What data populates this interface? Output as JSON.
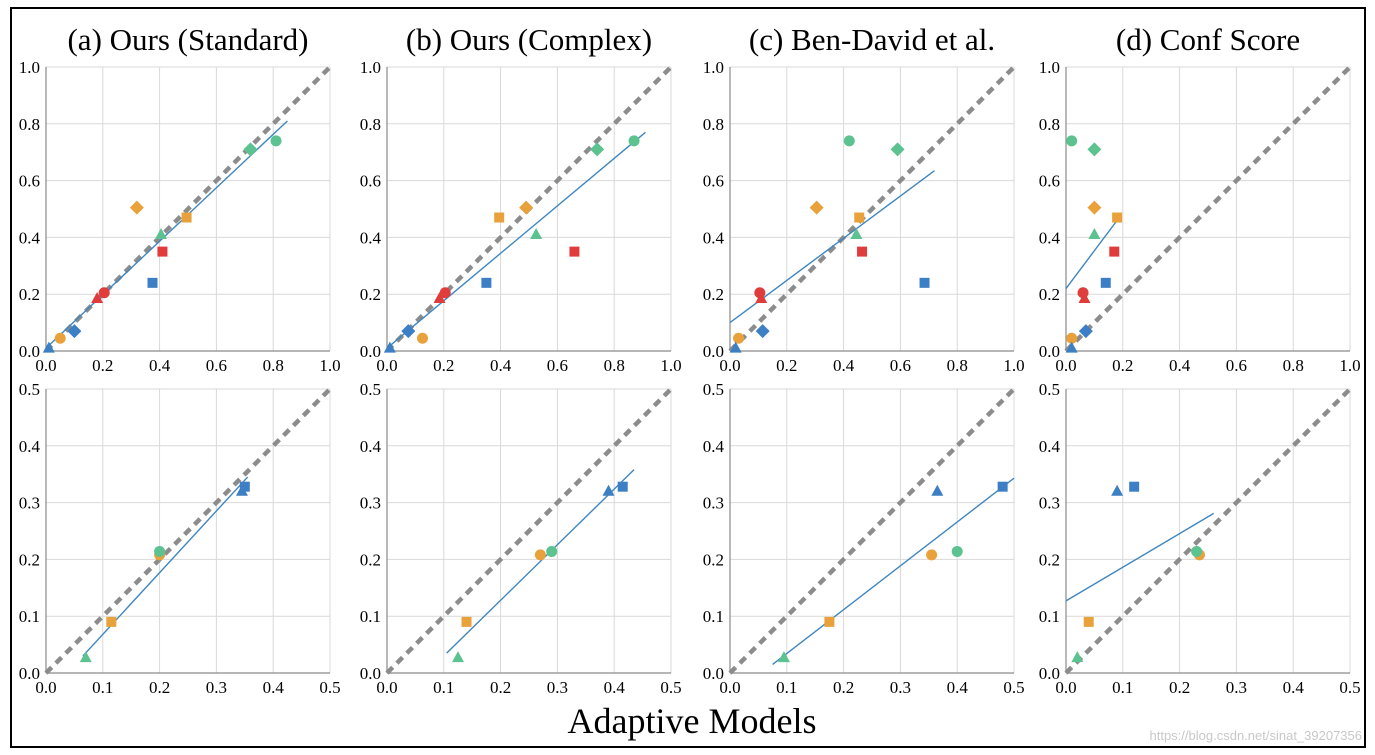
{
  "figure": {
    "xlabel": "Adaptive Models",
    "watermark": "https://blog.csdn.net/sinat_39207356"
  },
  "colors": {
    "orange": "#e9a23b",
    "red": "#e03c3c",
    "blue": "#3d7fc4",
    "green": "#5cc390",
    "fit_line": "#3f86c0",
    "identity_line": "#8c8c8c",
    "grid": "#d9d9d9"
  },
  "chart_data": [
    {
      "type": "scatter",
      "title": "(a) Ours (Standard)",
      "xlim": [
        0,
        1
      ],
      "ylim": [
        0,
        1
      ],
      "ticks": [
        "0.0",
        "0.2",
        "0.4",
        "0.6",
        "0.8",
        "1.0"
      ],
      "grid": true,
      "identity": [
        [
          0,
          0
        ],
        [
          1,
          1
        ]
      ],
      "fit": [
        [
          0,
          0.01
        ],
        [
          0.85,
          0.81
        ]
      ],
      "points": [
        {
          "x": 0.05,
          "y": 0.045,
          "shape": "circle",
          "color": "orange"
        },
        {
          "x": 0.32,
          "y": 0.505,
          "shape": "diamond",
          "color": "orange"
        },
        {
          "x": 0.495,
          "y": 0.47,
          "shape": "square",
          "color": "orange"
        },
        {
          "x": 0.18,
          "y": 0.185,
          "shape": "triangle",
          "color": "red"
        },
        {
          "x": 0.205,
          "y": 0.205,
          "shape": "circle",
          "color": "red"
        },
        {
          "x": 0.41,
          "y": 0.35,
          "shape": "square",
          "color": "red"
        },
        {
          "x": 0.01,
          "y": 0.01,
          "shape": "triangle",
          "color": "blue"
        },
        {
          "x": 0.1,
          "y": 0.07,
          "shape": "diamond",
          "color": "blue"
        },
        {
          "x": 0.375,
          "y": 0.24,
          "shape": "square",
          "color": "blue"
        },
        {
          "x": 0.405,
          "y": 0.41,
          "shape": "triangle",
          "color": "green"
        },
        {
          "x": 0.72,
          "y": 0.71,
          "shape": "diamond",
          "color": "green"
        },
        {
          "x": 0.81,
          "y": 0.74,
          "shape": "circle",
          "color": "green"
        }
      ]
    },
    {
      "type": "scatter",
      "title": "(b) Ours (Complex)",
      "xlim": [
        0,
        1
      ],
      "ylim": [
        0,
        1
      ],
      "ticks": [
        "0.0",
        "0.2",
        "0.4",
        "0.6",
        "0.8",
        "1.0"
      ],
      "grid": true,
      "identity": [
        [
          0,
          0
        ],
        [
          1,
          1
        ]
      ],
      "fit": [
        [
          0,
          0.01
        ],
        [
          0.91,
          0.77
        ]
      ],
      "points": [
        {
          "x": 0.125,
          "y": 0.045,
          "shape": "circle",
          "color": "orange"
        },
        {
          "x": 0.49,
          "y": 0.505,
          "shape": "diamond",
          "color": "orange"
        },
        {
          "x": 0.395,
          "y": 0.47,
          "shape": "square",
          "color": "orange"
        },
        {
          "x": 0.185,
          "y": 0.185,
          "shape": "triangle",
          "color": "red"
        },
        {
          "x": 0.205,
          "y": 0.205,
          "shape": "circle",
          "color": "red"
        },
        {
          "x": 0.66,
          "y": 0.35,
          "shape": "square",
          "color": "red"
        },
        {
          "x": 0.01,
          "y": 0.01,
          "shape": "triangle",
          "color": "blue"
        },
        {
          "x": 0.075,
          "y": 0.07,
          "shape": "diamond",
          "color": "blue"
        },
        {
          "x": 0.35,
          "y": 0.24,
          "shape": "square",
          "color": "blue"
        },
        {
          "x": 0.525,
          "y": 0.41,
          "shape": "triangle",
          "color": "green"
        },
        {
          "x": 0.74,
          "y": 0.71,
          "shape": "diamond",
          "color": "green"
        },
        {
          "x": 0.87,
          "y": 0.74,
          "shape": "circle",
          "color": "green"
        }
      ]
    },
    {
      "type": "scatter",
      "title": "(c) Ben-David et al.",
      "xlim": [
        0,
        1
      ],
      "ylim": [
        0,
        1
      ],
      "ticks": [
        "0.0",
        "0.2",
        "0.4",
        "0.6",
        "0.8",
        "1.0"
      ],
      "grid": true,
      "identity": [
        [
          0,
          0
        ],
        [
          1,
          1
        ]
      ],
      "fit": [
        [
          0,
          0.1
        ],
        [
          0.72,
          0.635
        ]
      ],
      "points": [
        {
          "x": 0.03,
          "y": 0.045,
          "shape": "circle",
          "color": "orange"
        },
        {
          "x": 0.305,
          "y": 0.505,
          "shape": "diamond",
          "color": "orange"
        },
        {
          "x": 0.455,
          "y": 0.47,
          "shape": "square",
          "color": "orange"
        },
        {
          "x": 0.11,
          "y": 0.185,
          "shape": "triangle",
          "color": "red"
        },
        {
          "x": 0.105,
          "y": 0.205,
          "shape": "circle",
          "color": "red"
        },
        {
          "x": 0.465,
          "y": 0.35,
          "shape": "square",
          "color": "red"
        },
        {
          "x": 0.02,
          "y": 0.01,
          "shape": "triangle",
          "color": "blue"
        },
        {
          "x": 0.115,
          "y": 0.07,
          "shape": "diamond",
          "color": "blue"
        },
        {
          "x": 0.685,
          "y": 0.24,
          "shape": "square",
          "color": "blue"
        },
        {
          "x": 0.445,
          "y": 0.41,
          "shape": "triangle",
          "color": "green"
        },
        {
          "x": 0.59,
          "y": 0.71,
          "shape": "diamond",
          "color": "green"
        },
        {
          "x": 0.42,
          "y": 0.74,
          "shape": "circle",
          "color": "green"
        }
      ]
    },
    {
      "type": "scatter",
      "title": "(d) Conf Score",
      "xlim": [
        0,
        1
      ],
      "ylim": [
        0,
        1
      ],
      "ticks": [
        "0.0",
        "0.2",
        "0.4",
        "0.6",
        "0.8",
        "1.0"
      ],
      "grid": true,
      "identity": [
        [
          0,
          0
        ],
        [
          1,
          1
        ]
      ],
      "fit": [
        [
          0,
          0.22
        ],
        [
          0.18,
          0.46
        ]
      ],
      "points": [
        {
          "x": 0.02,
          "y": 0.045,
          "shape": "circle",
          "color": "orange"
        },
        {
          "x": 0.1,
          "y": 0.505,
          "shape": "diamond",
          "color": "orange"
        },
        {
          "x": 0.18,
          "y": 0.47,
          "shape": "square",
          "color": "orange"
        },
        {
          "x": 0.065,
          "y": 0.185,
          "shape": "triangle",
          "color": "red"
        },
        {
          "x": 0.06,
          "y": 0.205,
          "shape": "circle",
          "color": "red"
        },
        {
          "x": 0.17,
          "y": 0.35,
          "shape": "square",
          "color": "red"
        },
        {
          "x": 0.02,
          "y": 0.01,
          "shape": "triangle",
          "color": "blue"
        },
        {
          "x": 0.07,
          "y": 0.07,
          "shape": "diamond",
          "color": "blue"
        },
        {
          "x": 0.14,
          "y": 0.24,
          "shape": "square",
          "color": "blue"
        },
        {
          "x": 0.1,
          "y": 0.41,
          "shape": "triangle",
          "color": "green"
        },
        {
          "x": 0.1,
          "y": 0.71,
          "shape": "diamond",
          "color": "green"
        },
        {
          "x": 0.02,
          "y": 0.74,
          "shape": "circle",
          "color": "green"
        }
      ]
    },
    {
      "type": "scatter",
      "title": "",
      "xlim": [
        0,
        0.5
      ],
      "ylim": [
        0,
        0.5
      ],
      "ticks": [
        "0.0",
        "0.1",
        "0.2",
        "0.3",
        "0.4",
        "0.5"
      ],
      "grid": true,
      "identity": [
        [
          0,
          0
        ],
        [
          0.5,
          0.5
        ]
      ],
      "fit": [
        [
          0.065,
          0.03
        ],
        [
          0.355,
          0.345
        ]
      ],
      "points": [
        {
          "x": 0.115,
          "y": 0.09,
          "shape": "square",
          "color": "orange"
        },
        {
          "x": 0.2,
          "y": 0.208,
          "shape": "circle",
          "color": "orange"
        },
        {
          "x": 0.2,
          "y": 0.214,
          "shape": "circle",
          "color": "green"
        },
        {
          "x": 0.07,
          "y": 0.027,
          "shape": "triangle",
          "color": "green"
        },
        {
          "x": 0.345,
          "y": 0.32,
          "shape": "triangle",
          "color": "blue"
        },
        {
          "x": 0.35,
          "y": 0.328,
          "shape": "square",
          "color": "blue"
        }
      ]
    },
    {
      "type": "scatter",
      "title": "",
      "xlim": [
        0,
        0.5
      ],
      "ylim": [
        0,
        0.5
      ],
      "ticks": [
        "0.0",
        "0.1",
        "0.2",
        "0.3",
        "0.4",
        "0.5"
      ],
      "grid": true,
      "identity": [
        [
          0,
          0
        ],
        [
          0.5,
          0.5
        ]
      ],
      "fit": [
        [
          0.105,
          0.035
        ],
        [
          0.435,
          0.358
        ]
      ],
      "points": [
        {
          "x": 0.14,
          "y": 0.09,
          "shape": "square",
          "color": "orange"
        },
        {
          "x": 0.27,
          "y": 0.208,
          "shape": "circle",
          "color": "orange"
        },
        {
          "x": 0.29,
          "y": 0.214,
          "shape": "circle",
          "color": "green"
        },
        {
          "x": 0.125,
          "y": 0.027,
          "shape": "triangle",
          "color": "green"
        },
        {
          "x": 0.39,
          "y": 0.32,
          "shape": "triangle",
          "color": "blue"
        },
        {
          "x": 0.415,
          "y": 0.328,
          "shape": "square",
          "color": "blue"
        }
      ]
    },
    {
      "type": "scatter",
      "title": "",
      "xlim": [
        0,
        0.5
      ],
      "ylim": [
        0,
        0.5
      ],
      "ticks": [
        "0.0",
        "0.1",
        "0.2",
        "0.3",
        "0.4",
        "0.5"
      ],
      "grid": true,
      "identity": [
        [
          0,
          0
        ],
        [
          0.5,
          0.5
        ]
      ],
      "fit": [
        [
          0.075,
          0.015
        ],
        [
          0.5,
          0.343
        ]
      ],
      "points": [
        {
          "x": 0.175,
          "y": 0.09,
          "shape": "square",
          "color": "orange"
        },
        {
          "x": 0.355,
          "y": 0.208,
          "shape": "circle",
          "color": "orange"
        },
        {
          "x": 0.4,
          "y": 0.214,
          "shape": "circle",
          "color": "green"
        },
        {
          "x": 0.095,
          "y": 0.027,
          "shape": "triangle",
          "color": "green"
        },
        {
          "x": 0.365,
          "y": 0.32,
          "shape": "triangle",
          "color": "blue"
        },
        {
          "x": 0.48,
          "y": 0.328,
          "shape": "square",
          "color": "blue"
        }
      ]
    },
    {
      "type": "scatter",
      "title": "",
      "xlim": [
        0,
        0.5
      ],
      "ylim": [
        0,
        0.5
      ],
      "ticks": [
        "0.0",
        "0.1",
        "0.2",
        "0.3",
        "0.4",
        "0.5"
      ],
      "grid": true,
      "identity": [
        [
          0,
          0
        ],
        [
          0.5,
          0.5
        ]
      ],
      "fit": [
        [
          0,
          0.127
        ],
        [
          0.26,
          0.281
        ]
      ],
      "points": [
        {
          "x": 0.04,
          "y": 0.09,
          "shape": "square",
          "color": "orange"
        },
        {
          "x": 0.235,
          "y": 0.208,
          "shape": "circle",
          "color": "orange"
        },
        {
          "x": 0.23,
          "y": 0.214,
          "shape": "circle",
          "color": "green"
        },
        {
          "x": 0.02,
          "y": 0.027,
          "shape": "triangle",
          "color": "green"
        },
        {
          "x": 0.09,
          "y": 0.32,
          "shape": "triangle",
          "color": "blue"
        },
        {
          "x": 0.12,
          "y": 0.328,
          "shape": "square",
          "color": "blue"
        }
      ]
    }
  ]
}
